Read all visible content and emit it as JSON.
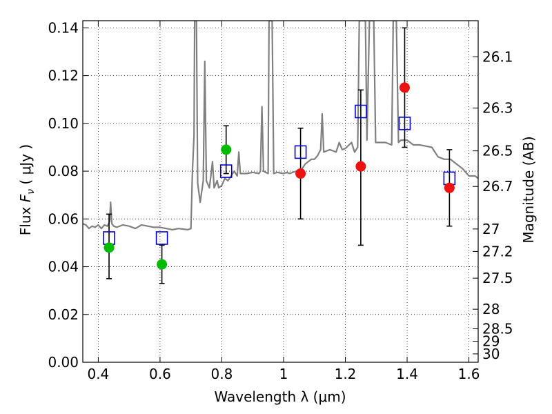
{
  "chart_data": {
    "type": "scatter",
    "xlabel": "Wavelength  λ (μm)",
    "ylabel": "Flux  F_ν  ( μJy )",
    "ylabel_parts": {
      "prefix": "Flux  ",
      "symbol": "F",
      "subscript": "ν",
      "suffix": "  ( μJy )"
    },
    "y2label": "Magnitude (AB)",
    "xlim": [
      0.35,
      1.63
    ],
    "ylim": [
      0.0,
      0.143
    ],
    "grid": true,
    "x_ticks": [
      0.4,
      0.6,
      0.8,
      1.0,
      1.2,
      1.4,
      1.6
    ],
    "x_tick_labels": [
      "0.4",
      "0.6",
      "0.8",
      "1",
      "1.2",
      "1.4",
      "1.6"
    ],
    "y_ticks": [
      0.0,
      0.02,
      0.04,
      0.06,
      0.08,
      0.1,
      0.12,
      0.14
    ],
    "y_tick_labels": [
      "0.00",
      "0.02",
      "0.04",
      "0.06",
      "0.08",
      "0.10",
      "0.12",
      "0.14"
    ],
    "mag_ticks": [
      {
        "label": "26.1",
        "flux": 0.1279
      },
      {
        "label": "26.3",
        "flux": 0.1064
      },
      {
        "label": "26.5",
        "flux": 0.0885
      },
      {
        "label": "26.7",
        "flux": 0.0736
      },
      {
        "label": "27",
        "flux": 0.0558
      },
      {
        "label": "27.2",
        "flux": 0.0464
      },
      {
        "label": "27.5",
        "flux": 0.0352
      },
      {
        "label": "28",
        "flux": 0.0222
      },
      {
        "label": "28.5",
        "flux": 0.014
      },
      {
        "label": "29",
        "flux": 0.0088
      },
      {
        "label": "30",
        "flux": 0.0035
      }
    ],
    "sed_template": {
      "color": "#808080",
      "points": [
        [
          0.35,
          0.058
        ],
        [
          0.36,
          0.0575
        ],
        [
          0.37,
          0.056
        ],
        [
          0.38,
          0.057
        ],
        [
          0.39,
          0.0565
        ],
        [
          0.4,
          0.0575
        ],
        [
          0.41,
          0.056
        ],
        [
          0.42,
          0.0575
        ],
        [
          0.43,
          0.057
        ],
        [
          0.437,
          0.059
        ],
        [
          0.44,
          0.067
        ],
        [
          0.444,
          0.058
        ],
        [
          0.45,
          0.057
        ],
        [
          0.46,
          0.0565
        ],
        [
          0.48,
          0.0575
        ],
        [
          0.5,
          0.057
        ],
        [
          0.52,
          0.056
        ],
        [
          0.54,
          0.0575
        ],
        [
          0.56,
          0.057
        ],
        [
          0.58,
          0.0565
        ],
        [
          0.6,
          0.0565
        ],
        [
          0.62,
          0.056
        ],
        [
          0.64,
          0.0555
        ],
        [
          0.66,
          0.056
        ],
        [
          0.69,
          0.0555
        ],
        [
          0.7,
          0.056
        ],
        [
          0.705,
          0.08
        ],
        [
          0.71,
          0.095
        ],
        [
          0.712,
          0.143
        ],
        [
          0.718,
          0.143
        ],
        [
          0.722,
          0.075
        ],
        [
          0.73,
          0.067
        ],
        [
          0.74,
          0.076
        ],
        [
          0.745,
          0.126
        ],
        [
          0.75,
          0.076
        ],
        [
          0.76,
          0.073
        ],
        [
          0.77,
          0.084
        ],
        [
          0.775,
          0.073
        ],
        [
          0.785,
          0.076
        ],
        [
          0.79,
          0.073
        ],
        [
          0.8,
          0.074
        ],
        [
          0.81,
          0.077
        ],
        [
          0.82,
          0.076
        ],
        [
          0.83,
          0.078
        ],
        [
          0.84,
          0.08
        ],
        [
          0.85,
          0.078
        ],
        [
          0.855,
          0.088
        ],
        [
          0.86,
          0.079
        ],
        [
          0.87,
          0.079
        ],
        [
          0.88,
          0.079
        ],
        [
          0.9,
          0.0795
        ],
        [
          0.92,
          0.079
        ],
        [
          0.925,
          0.08
        ],
        [
          0.93,
          0.107
        ],
        [
          0.935,
          0.08
        ],
        [
          0.95,
          0.079
        ],
        [
          0.953,
          0.143
        ],
        [
          0.963,
          0.143
        ],
        [
          0.968,
          0.079
        ],
        [
          0.98,
          0.0795
        ],
        [
          1.0,
          0.079
        ],
        [
          1.01,
          0.0795
        ],
        [
          1.02,
          0.079
        ],
        [
          1.04,
          0.08
        ],
        [
          1.06,
          0.081
        ],
        [
          1.07,
          0.083
        ],
        [
          1.08,
          0.084
        ],
        [
          1.09,
          0.085
        ],
        [
          1.1,
          0.085
        ],
        [
          1.11,
          0.0865
        ],
        [
          1.12,
          0.089
        ],
        [
          1.125,
          0.104
        ],
        [
          1.13,
          0.088
        ],
        [
          1.15,
          0.089
        ],
        [
          1.17,
          0.088
        ],
        [
          1.18,
          0.092
        ],
        [
          1.19,
          0.089
        ],
        [
          1.2,
          0.0895
        ],
        [
          1.22,
          0.092
        ],
        [
          1.23,
          0.088
        ],
        [
          1.24,
          0.09
        ],
        [
          1.245,
          0.143
        ],
        [
          1.265,
          0.143
        ],
        [
          1.27,
          0.093
        ],
        [
          1.278,
          0.143
        ],
        [
          1.292,
          0.143
        ],
        [
          1.298,
          0.092
        ],
        [
          1.31,
          0.092
        ],
        [
          1.33,
          0.092
        ],
        [
          1.35,
          0.091
        ],
        [
          1.355,
          0.143
        ],
        [
          1.365,
          0.143
        ],
        [
          1.372,
          0.092
        ],
        [
          1.38,
          0.093
        ],
        [
          1.4,
          0.093
        ],
        [
          1.42,
          0.091
        ],
        [
          1.44,
          0.091
        ],
        [
          1.46,
          0.0905
        ],
        [
          1.48,
          0.09
        ],
        [
          1.5,
          0.086
        ],
        [
          1.52,
          0.085
        ],
        [
          1.54,
          0.085
        ],
        [
          1.56,
          0.083
        ],
        [
          1.58,
          0.081
        ],
        [
          1.6,
          0.078
        ],
        [
          1.62,
          0.078
        ],
        [
          1.63,
          0.077
        ]
      ]
    },
    "series": [
      {
        "name": "photometry-green",
        "marker": "circle",
        "color": "#00bb00",
        "points": [
          {
            "x": 0.435,
            "y": 0.048
          },
          {
            "x": 0.606,
            "y": 0.041
          },
          {
            "x": 0.814,
            "y": 0.089
          }
        ]
      },
      {
        "name": "photometry-red",
        "marker": "circle",
        "color": "#ee1111",
        "points": [
          {
            "x": 1.055,
            "y": 0.079
          },
          {
            "x": 1.25,
            "y": 0.082
          },
          {
            "x": 1.392,
            "y": 0.115
          },
          {
            "x": 1.537,
            "y": 0.073
          }
        ]
      },
      {
        "name": "model-photometry",
        "marker": "open-square",
        "color": "#0000cc",
        "points": [
          {
            "x": 0.435,
            "y": 0.052
          },
          {
            "x": 0.606,
            "y": 0.052
          },
          {
            "x": 0.814,
            "y": 0.08
          },
          {
            "x": 1.055,
            "y": 0.088
          },
          {
            "x": 1.25,
            "y": 0.105
          },
          {
            "x": 1.392,
            "y": 0.1
          },
          {
            "x": 1.537,
            "y": 0.077
          }
        ]
      }
    ],
    "error_bars": [
      {
        "x": 0.435,
        "low": 0.035,
        "high": 0.062
      },
      {
        "x": 0.606,
        "low": 0.033,
        "high": 0.049
      },
      {
        "x": 0.814,
        "low": 0.079,
        "high": 0.099
      },
      {
        "x": 1.055,
        "low": 0.06,
        "high": 0.098
      },
      {
        "x": 1.25,
        "low": 0.049,
        "high": 0.114
      },
      {
        "x": 1.392,
        "low": 0.09,
        "high": 0.14
      },
      {
        "x": 1.537,
        "low": 0.057,
        "high": 0.089
      }
    ]
  }
}
